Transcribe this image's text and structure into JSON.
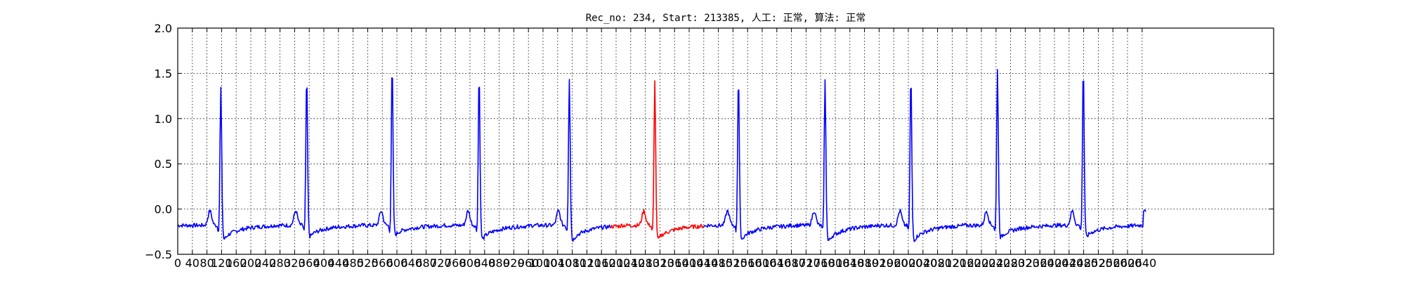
{
  "chart_data": {
    "type": "line",
    "title": "Rec_no: 234, Start: 213385, 人工: 正常, 算法: 正常",
    "xlabel": "",
    "ylabel": "",
    "xlim": [
      0,
      3000
    ],
    "ylim": [
      -0.5,
      2.0
    ],
    "grid": true,
    "grid_style": "dotted",
    "y_ticks": [
      -0.5,
      0.0,
      0.5,
      1.0,
      1.5,
      2.0
    ],
    "y_tick_labels": [
      "−0.5",
      "0.0",
      "0.5",
      "1.0",
      "1.5",
      "2.0"
    ],
    "x_ticks": [
      0,
      40,
      80,
      120,
      160,
      200,
      240,
      280,
      320,
      360,
      400,
      440,
      480,
      520,
      560,
      600,
      640,
      680,
      720,
      760,
      800,
      840,
      880,
      920,
      960,
      1000,
      1040,
      1080,
      1120,
      1160,
      1200,
      1240,
      1280,
      1320,
      1360,
      1400,
      1440,
      1480,
      1520,
      1560,
      1600,
      1640,
      1680,
      1720,
      1760,
      1800,
      1840,
      1880,
      1920,
      1960,
      2000,
      2040,
      2080,
      2120,
      2160,
      2200,
      2240,
      2280,
      2320,
      2360,
      2400,
      2440,
      2480,
      2520,
      2560,
      2600,
      2640
    ],
    "x_tick_labels": [
      "0",
      "40",
      "80",
      "120",
      "160",
      "200",
      "240",
      "280",
      "320",
      "360",
      "400",
      "440",
      "480",
      "520",
      "560",
      "600",
      "640",
      "680",
      "720",
      "760",
      "800",
      "840",
      "880",
      "920",
      "960",
      "1000",
      "1040",
      "1080",
      "1120",
      "1160",
      "1200",
      "1240",
      "1280",
      "1320",
      "1360",
      "1400",
      "1440",
      "1480",
      "1520",
      "1560",
      "1600",
      "1640",
      "1680",
      "1720",
      "1760",
      "1800",
      "1840",
      "1880",
      "1920",
      "1960",
      "2000",
      "2040",
      "2080",
      "2120",
      "2160",
      "2200",
      "2240",
      "2280",
      "2320",
      "2360",
      "2400",
      "2440",
      "2480",
      "2520",
      "2560",
      "2600",
      "2640"
    ],
    "series": [
      {
        "color": "#0000ff",
        "highlight_color": "#ff0000",
        "highlight_range": [
          1185,
          1440
        ],
        "baseline": -0.18,
        "beats": [
          {
            "r_x": 118,
            "r_amp": 1.34,
            "s_depth": -0.33
          },
          {
            "r_x": 353,
            "r_amp": 1.48,
            "s_depth": -0.3
          },
          {
            "r_x": 587,
            "r_amp": 1.61,
            "s_depth": -0.28
          },
          {
            "r_x": 825,
            "r_amp": 1.51,
            "s_depth": -0.33
          },
          {
            "r_x": 1072,
            "r_amp": 1.45,
            "s_depth": -0.34
          },
          {
            "r_x": 1306,
            "r_amp": 1.41,
            "s_depth": -0.33
          },
          {
            "r_x": 1535,
            "r_amp": 1.48,
            "s_depth": -0.33
          },
          {
            "r_x": 1772,
            "r_amp": 1.42,
            "s_depth": -0.35
          },
          {
            "r_x": 2007,
            "r_amp": 1.49,
            "s_depth": -0.34
          },
          {
            "r_x": 2244,
            "r_amp": 1.56,
            "s_depth": -0.31
          },
          {
            "r_x": 2479,
            "r_amp": 1.59,
            "s_depth": -0.3
          }
        ],
        "x_end": 2650,
        "end_value": -0.02
      }
    ]
  }
}
